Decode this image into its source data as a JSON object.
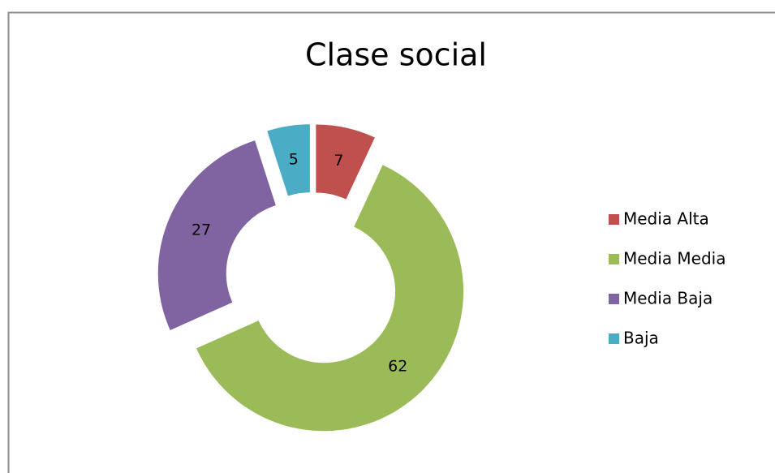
{
  "chart_data": {
    "type": "donut",
    "title": "Clase social",
    "categories": [
      "Media Alta",
      "Media Media",
      "Media Baja",
      "Baja"
    ],
    "values": [
      7,
      62,
      27,
      5
    ],
    "colors": [
      "#c0504d",
      "#9bbb59",
      "#8064a2",
      "#4bacc6"
    ],
    "legend": "right",
    "exploded": true
  }
}
